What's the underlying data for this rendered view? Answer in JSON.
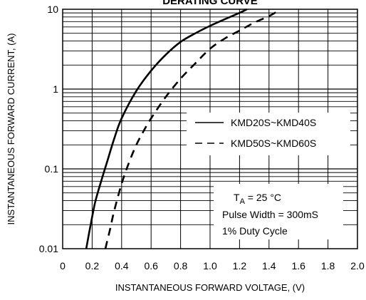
{
  "chart_data": {
    "type": "line",
    "title": "DERATING CURVE",
    "xlabel": "INSTANTANEOUS FORWARD VOLTAGE, (V)",
    "ylabel": "INSTANTANEOUS FORWARD CURRENT, (A)",
    "xlim": [
      0,
      2.0
    ],
    "ylim": [
      0.01,
      10
    ],
    "yscale": "log",
    "grid": true,
    "x_ticks": [
      "0",
      "0.2",
      "0.4",
      "0.6",
      "0.8",
      "1.0",
      "1.2",
      "1.4",
      "1.6",
      "1.8",
      "2.0"
    ],
    "y_ticks": [
      "0.01",
      "0.1",
      "1",
      "10"
    ],
    "legend_position": "right",
    "series": [
      {
        "name": "KMD20S~KMD40S",
        "style": "solid",
        "x": [
          0.16,
          0.18,
          0.2,
          0.22,
          0.25,
          0.3,
          0.35,
          0.4,
          0.5,
          0.6,
          0.7,
          0.8,
          0.9,
          1.0,
          1.1,
          1.2,
          1.25
        ],
        "y": [
          0.01,
          0.016,
          0.025,
          0.038,
          0.06,
          0.12,
          0.24,
          0.43,
          0.95,
          1.7,
          2.7,
          3.9,
          5.0,
          6.2,
          7.5,
          9.0,
          10
        ]
      },
      {
        "name": "KMD50S~KMD60S",
        "style": "dashed",
        "x": [
          0.29,
          0.3,
          0.32,
          0.35,
          0.4,
          0.45,
          0.5,
          0.55,
          0.6,
          0.7,
          0.8,
          0.9,
          1.0,
          1.1,
          1.2,
          1.3,
          1.4,
          1.46
        ],
        "y": [
          0.01,
          0.012,
          0.017,
          0.03,
          0.065,
          0.12,
          0.2,
          0.3,
          0.43,
          0.8,
          1.35,
          2.1,
          3.2,
          4.3,
          5.4,
          6.8,
          8.2,
          9.5
        ]
      }
    ],
    "annotation": {
      "ta_prefix": "T",
      "ta_sub": "A",
      "ta_value": " = 25 °C",
      "pulse_width": "Pulse Width = 300mS",
      "duty_cycle": "1% Duty Cycle"
    }
  }
}
